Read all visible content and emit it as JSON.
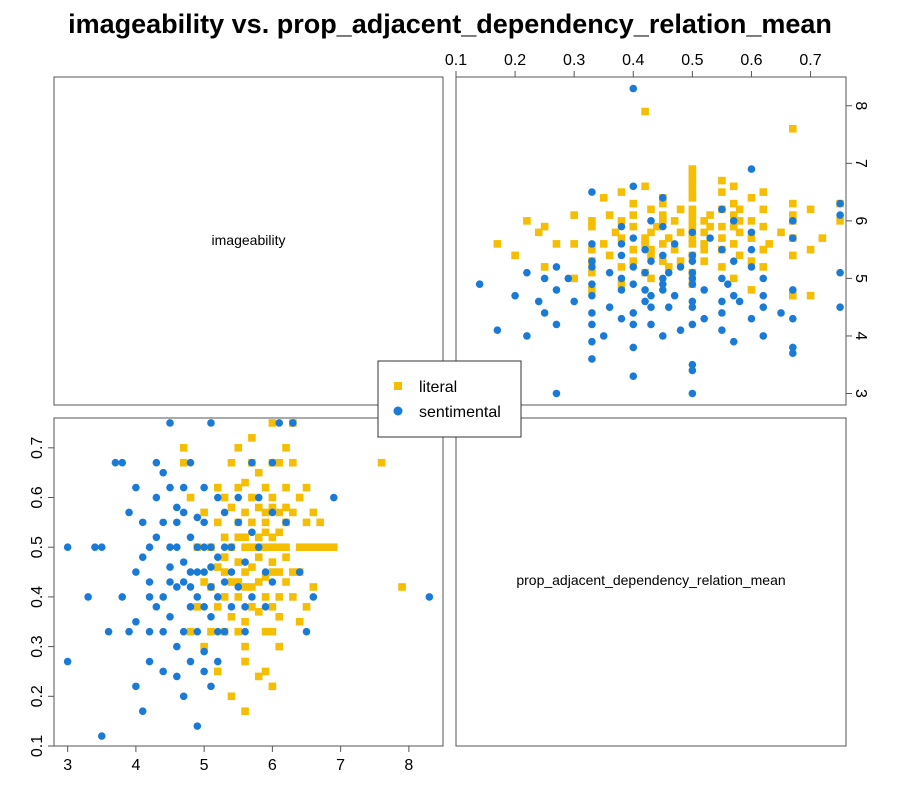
{
  "chart_data": {
    "type": "scatter",
    "title": "imageability vs. prop_adjacent_dependency_relation_mean",
    "variables": [
      "imageability",
      "prop_adjacent_dependency_relation_mean"
    ],
    "axes": {
      "imageability": {
        "range": [
          2.8,
          8.5
        ],
        "ticks": [
          "3",
          "4",
          "5",
          "6",
          "7",
          "8"
        ]
      },
      "prop_adjacent_dependency_relation_mean": {
        "range": [
          0.1,
          0.76
        ],
        "ticks": [
          "0.1",
          "0.2",
          "0.3",
          "0.4",
          "0.5",
          "0.6",
          "0.7"
        ]
      }
    },
    "legend": {
      "position": "center",
      "entries": [
        "literal",
        "sentimental"
      ]
    },
    "series": [
      {
        "name": "literal",
        "color": "#F5BE00",
        "marker": "square",
        "points": [
          [
            5.7,
            0.6
          ],
          [
            5.9,
            0.55
          ],
          [
            6.1,
            0.5
          ],
          [
            5.3,
            0.45
          ],
          [
            5.6,
            0.52
          ],
          [
            5.8,
            0.48
          ],
          [
            6.0,
            0.58
          ],
          [
            5.5,
            0.4
          ],
          [
            6.2,
            0.55
          ],
          [
            5.4,
            0.5
          ],
          [
            5.9,
            0.62
          ],
          [
            6.3,
            0.45
          ],
          [
            5.2,
            0.38
          ],
          [
            5.7,
            0.42
          ],
          [
            6.0,
            0.33
          ],
          [
            5.6,
            0.57
          ],
          [
            6.4,
            0.5
          ],
          [
            5.8,
            0.65
          ],
          [
            5.1,
            0.5
          ],
          [
            5.5,
            0.55
          ],
          [
            6.1,
            0.4
          ],
          [
            5.3,
            0.6
          ],
          [
            6.5,
            0.5
          ],
          [
            5.9,
            0.44
          ],
          [
            5.6,
            0.35
          ],
          [
            6.2,
            0.62
          ],
          [
            5.4,
            0.43
          ],
          [
            6.0,
            0.52
          ],
          [
            5.7,
            0.5
          ],
          [
            6.3,
            0.57
          ],
          [
            5.8,
            0.37
          ],
          [
            6.1,
            0.67
          ],
          [
            5.5,
            0.47
          ],
          [
            6.6,
            0.42
          ],
          [
            5.2,
            0.55
          ],
          [
            5.9,
            0.5
          ],
          [
            6.4,
            0.6
          ],
          [
            5.6,
            0.3
          ],
          [
            6.0,
            0.45
          ],
          [
            5.7,
            0.67
          ],
          [
            6.2,
            0.48
          ],
          [
            5.3,
            0.33
          ],
          [
            6.5,
            0.55
          ],
          [
            5.8,
            0.58
          ],
          [
            6.1,
            0.36
          ],
          [
            5.4,
            0.67
          ],
          [
            6.7,
            0.5
          ],
          [
            6.0,
            0.6
          ],
          [
            5.5,
            0.62
          ],
          [
            6.3,
            0.4
          ],
          [
            5.9,
            0.33
          ],
          [
            5.6,
            0.45
          ],
          [
            6.2,
            0.7
          ],
          [
            5.1,
            0.42
          ],
          [
            5.8,
            0.5
          ],
          [
            6.4,
            0.45
          ],
          [
            5.7,
            0.55
          ],
          [
            6.0,
            0.5
          ],
          [
            5.3,
            0.48
          ],
          [
            6.1,
            0.57
          ],
          [
            5.5,
            0.33
          ],
          [
            6.6,
            0.57
          ],
          [
            5.9,
            0.4
          ],
          [
            5.4,
            0.58
          ],
          [
            6.2,
            0.43
          ],
          [
            5.6,
            0.63
          ],
          [
            6.0,
            0.38
          ],
          [
            6.8,
            0.5
          ],
          [
            5.2,
            0.46
          ],
          [
            5.8,
            0.43
          ],
          [
            6.3,
            0.67
          ],
          [
            5.5,
            0.52
          ],
          [
            6.1,
            0.45
          ],
          [
            5.7,
            0.38
          ],
          [
            6.5,
            0.38
          ],
          [
            5.9,
            0.57
          ],
          [
            6.0,
            0.67
          ],
          [
            5.4,
            0.36
          ],
          [
            6.2,
            0.5
          ],
          [
            5.6,
            0.5
          ],
          [
            4.9,
            0.5
          ],
          [
            5.0,
            0.57
          ],
          [
            4.8,
            0.6
          ],
          [
            5.1,
            0.33
          ],
          [
            5.0,
            0.43
          ],
          [
            4.9,
            0.38
          ],
          [
            5.3,
            0.4
          ],
          [
            5.2,
            0.62
          ],
          [
            4.7,
            0.67
          ],
          [
            5.6,
            0.27
          ],
          [
            5.9,
            0.25
          ],
          [
            6.0,
            0.22
          ],
          [
            5.4,
            0.2
          ],
          [
            5.6,
            0.17
          ],
          [
            5.8,
            0.24
          ],
          [
            6.1,
            0.3
          ],
          [
            5.0,
            0.3
          ],
          [
            5.2,
            0.25
          ],
          [
            4.8,
            0.33
          ],
          [
            5.5,
            0.7
          ],
          [
            6.3,
            0.75
          ],
          [
            6.0,
            0.75
          ],
          [
            5.7,
            0.72
          ],
          [
            4.7,
            0.7
          ],
          [
            7.6,
            0.67
          ],
          [
            7.9,
            0.42
          ],
          [
            6.4,
            0.35
          ],
          [
            6.6,
            0.5
          ],
          [
            6.7,
            0.55
          ],
          [
            6.5,
            0.62
          ],
          [
            6.2,
            0.58
          ],
          [
            6.9,
            0.5
          ],
          [
            5.7,
            0.46
          ],
          [
            5.9,
            0.53
          ],
          [
            6.0,
            0.47
          ],
          [
            5.8,
            0.52
          ],
          [
            6.1,
            0.53
          ],
          [
            5.6,
            0.42
          ],
          [
            5.5,
            0.43
          ],
          [
            5.3,
            0.52
          ]
        ]
      },
      {
        "name": "sentimental",
        "color": "#1A7BD7",
        "marker": "circle",
        "points": [
          [
            3.0,
            0.5
          ],
          [
            3.0,
            0.27
          ],
          [
            3.4,
            0.5
          ],
          [
            3.3,
            0.4
          ],
          [
            3.5,
            0.5
          ],
          [
            3.5,
            0.12
          ],
          [
            3.7,
            0.67
          ],
          [
            3.6,
            0.33
          ],
          [
            3.8,
            0.4
          ],
          [
            3.9,
            0.57
          ],
          [
            4.0,
            0.45
          ],
          [
            4.1,
            0.17
          ],
          [
            4.0,
            0.22
          ],
          [
            4.2,
            0.5
          ],
          [
            4.2,
            0.33
          ],
          [
            4.3,
            0.6
          ],
          [
            4.4,
            0.4
          ],
          [
            4.4,
            0.25
          ],
          [
            4.5,
            0.75
          ],
          [
            4.5,
            0.5
          ],
          [
            4.6,
            0.42
          ],
          [
            4.6,
            0.3
          ],
          [
            4.7,
            0.57
          ],
          [
            4.7,
            0.2
          ],
          [
            4.8,
            0.67
          ],
          [
            4.8,
            0.45
          ],
          [
            4.9,
            0.14
          ],
          [
            4.9,
            0.5
          ],
          [
            5.0,
            0.38
          ],
          [
            5.0,
            0.29
          ],
          [
            5.1,
            0.75
          ],
          [
            5.1,
            0.5
          ],
          [
            5.2,
            0.4
          ],
          [
            5.2,
            0.6
          ],
          [
            5.3,
            0.33
          ],
          [
            5.3,
            0.5
          ],
          [
            5.4,
            0.45
          ],
          [
            5.5,
            0.55
          ],
          [
            5.6,
            0.38
          ],
          [
            5.7,
            0.67
          ],
          [
            5.8,
            0.5
          ],
          [
            5.9,
            0.45
          ],
          [
            6.0,
            0.57
          ],
          [
            6.1,
            0.75
          ],
          [
            6.3,
            0.75
          ],
          [
            6.5,
            0.33
          ],
          [
            6.6,
            0.4
          ],
          [
            6.9,
            0.6
          ],
          [
            8.3,
            0.4
          ],
          [
            4.0,
            0.35
          ],
          [
            4.1,
            0.48
          ],
          [
            4.2,
            0.43
          ],
          [
            4.3,
            0.38
          ],
          [
            4.3,
            0.52
          ],
          [
            4.4,
            0.55
          ],
          [
            4.5,
            0.36
          ],
          [
            4.5,
            0.46
          ],
          [
            4.6,
            0.5
          ],
          [
            4.6,
            0.58
          ],
          [
            4.7,
            0.33
          ],
          [
            4.7,
            0.43
          ],
          [
            4.8,
            0.38
          ],
          [
            4.8,
            0.52
          ],
          [
            4.9,
            0.4
          ],
          [
            4.9,
            0.56
          ],
          [
            5.0,
            0.45
          ],
          [
            5.0,
            0.5
          ],
          [
            5.0,
            0.62
          ],
          [
            5.1,
            0.42
          ],
          [
            5.1,
            0.36
          ],
          [
            5.2,
            0.48
          ],
          [
            5.2,
            0.33
          ],
          [
            5.3,
            0.43
          ],
          [
            5.3,
            0.57
          ],
          [
            5.4,
            0.38
          ],
          [
            5.4,
            0.5
          ],
          [
            5.5,
            0.42
          ],
          [
            5.5,
            0.6
          ],
          [
            5.6,
            0.47
          ],
          [
            5.6,
            0.33
          ],
          [
            5.7,
            0.4
          ],
          [
            5.7,
            0.53
          ],
          [
            5.8,
            0.6
          ],
          [
            5.9,
            0.38
          ],
          [
            6.0,
            0.67
          ],
          [
            6.0,
            0.43
          ],
          [
            6.2,
            0.55
          ],
          [
            6.4,
            0.45
          ],
          [
            3.8,
            0.67
          ],
          [
            3.9,
            0.33
          ],
          [
            4.0,
            0.62
          ],
          [
            4.1,
            0.55
          ],
          [
            4.2,
            0.27
          ],
          [
            4.3,
            0.67
          ],
          [
            4.4,
            0.33
          ],
          [
            4.5,
            0.62
          ],
          [
            4.6,
            0.24
          ],
          [
            4.7,
            0.62
          ],
          [
            4.8,
            0.27
          ],
          [
            4.9,
            0.33
          ],
          [
            5.0,
            0.25
          ],
          [
            5.1,
            0.22
          ],
          [
            5.2,
            0.27
          ],
          [
            4.4,
            0.65
          ],
          [
            4.2,
            0.4
          ],
          [
            4.6,
            0.55
          ],
          [
            4.7,
            0.47
          ],
          [
            4.8,
            0.42
          ],
          [
            5.0,
            0.55
          ],
          [
            4.5,
            0.43
          ],
          [
            4.9,
            0.45
          ],
          [
            5.1,
            0.46
          ]
        ]
      }
    ]
  }
}
